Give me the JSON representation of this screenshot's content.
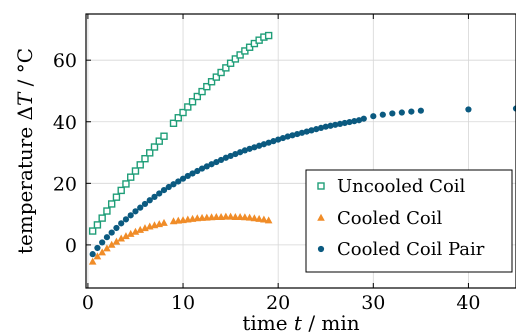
{
  "chart_data": {
    "type": "scatter",
    "xlabel": "time t / min",
    "ylabel": "temperature ΔT / °C",
    "xlim": [
      -0.2,
      45
    ],
    "ylim": [
      -14,
      75
    ],
    "x_ticks": [
      0,
      10,
      20,
      30,
      40
    ],
    "y_ticks": [
      0,
      20,
      40,
      60
    ],
    "grid": true,
    "legend_position": "lower-right",
    "series": [
      {
        "name": "Uncooled Coil",
        "marker": "square-open",
        "color": "#1f9e78",
        "points": [
          [
            0.5,
            4.5
          ],
          [
            1.0,
            6.5
          ],
          [
            1.5,
            8.7
          ],
          [
            2.0,
            11.0
          ],
          [
            2.5,
            13.3
          ],
          [
            3.0,
            15.5
          ],
          [
            3.5,
            17.7
          ],
          [
            4.0,
            19.8
          ],
          [
            4.5,
            22.0
          ],
          [
            5.0,
            24.0
          ],
          [
            5.5,
            26.0
          ],
          [
            6.0,
            28.0
          ],
          [
            6.5,
            29.9
          ],
          [
            7.0,
            31.8
          ],
          [
            7.5,
            33.7
          ],
          [
            8.0,
            35.3
          ],
          [
            9.0,
            39.5
          ],
          [
            9.5,
            41.3
          ],
          [
            10.0,
            43.0
          ],
          [
            10.5,
            44.8
          ],
          [
            11.0,
            46.5
          ],
          [
            11.5,
            48.2
          ],
          [
            12.0,
            49.8
          ],
          [
            12.5,
            51.4
          ],
          [
            13.0,
            53.0
          ],
          [
            13.5,
            54.5
          ],
          [
            14.0,
            56.0
          ],
          [
            14.5,
            57.5
          ],
          [
            15.0,
            59.0
          ],
          [
            15.5,
            60.4
          ],
          [
            16.0,
            61.7
          ],
          [
            16.5,
            63.0
          ],
          [
            17.0,
            64.2
          ],
          [
            17.5,
            65.4
          ],
          [
            18.0,
            66.5
          ],
          [
            18.5,
            67.5
          ],
          [
            19.0,
            68.0
          ]
        ]
      },
      {
        "name": "Cooled Coil",
        "marker": "triangle",
        "color": "#f08c28",
        "points": [
          [
            0.5,
            -5.5
          ],
          [
            1.0,
            -3.8
          ],
          [
            1.5,
            -2.5
          ],
          [
            2.0,
            -1.2
          ],
          [
            2.5,
            0.0
          ],
          [
            3.0,
            1.0
          ],
          [
            3.5,
            2.0
          ],
          [
            4.0,
            2.8
          ],
          [
            4.5,
            3.5
          ],
          [
            5.0,
            4.2
          ],
          [
            5.5,
            4.8
          ],
          [
            6.0,
            5.4
          ],
          [
            6.5,
            5.9
          ],
          [
            7.0,
            6.3
          ],
          [
            7.5,
            6.7
          ],
          [
            8.0,
            7.1
          ],
          [
            9.0,
            7.6
          ],
          [
            9.5,
            7.8
          ],
          [
            10.0,
            8.0
          ],
          [
            10.5,
            8.2
          ],
          [
            11.0,
            8.4
          ],
          [
            11.5,
            8.6
          ],
          [
            12.0,
            8.7
          ],
          [
            12.5,
            8.8
          ],
          [
            13.0,
            8.9
          ],
          [
            13.5,
            9.0
          ],
          [
            14.0,
            9.0
          ],
          [
            14.5,
            9.1
          ],
          [
            15.0,
            9.1
          ],
          [
            15.5,
            9.0
          ],
          [
            16.0,
            9.0
          ],
          [
            16.5,
            8.9
          ],
          [
            17.0,
            8.8
          ],
          [
            17.5,
            8.6
          ],
          [
            18.0,
            8.4
          ],
          [
            18.5,
            8.2
          ],
          [
            19.0,
            7.9
          ]
        ]
      },
      {
        "name": "Cooled Coil Pair",
        "marker": "circle",
        "color": "#0b5a80",
        "points": [
          [
            0.5,
            -3.0
          ],
          [
            1.0,
            -1.0
          ],
          [
            1.5,
            0.8
          ],
          [
            2.0,
            2.5
          ],
          [
            2.5,
            4.0
          ],
          [
            3.0,
            5.5
          ],
          [
            3.5,
            7.0
          ],
          [
            4.0,
            8.3
          ],
          [
            4.5,
            9.6
          ],
          [
            5.0,
            10.9
          ],
          [
            5.5,
            12.1
          ],
          [
            6.0,
            13.3
          ],
          [
            6.5,
            14.5
          ],
          [
            7.0,
            15.6
          ],
          [
            7.5,
            16.7
          ],
          [
            8.0,
            17.8
          ],
          [
            8.5,
            18.8
          ],
          [
            9.0,
            19.7
          ],
          [
            9.5,
            20.6
          ],
          [
            10.0,
            21.5
          ],
          [
            10.5,
            22.4
          ],
          [
            11.0,
            23.2
          ],
          [
            11.5,
            24.0
          ],
          [
            12.0,
            24.8
          ],
          [
            12.5,
            25.5
          ],
          [
            13.0,
            26.2
          ],
          [
            13.5,
            26.9
          ],
          [
            14.0,
            27.6
          ],
          [
            14.5,
            28.3
          ],
          [
            15.0,
            28.9
          ],
          [
            15.5,
            29.5
          ],
          [
            16.0,
            30.1
          ],
          [
            16.5,
            30.7
          ],
          [
            17.0,
            31.2
          ],
          [
            17.5,
            31.7
          ],
          [
            18.0,
            32.2
          ],
          [
            18.5,
            32.7
          ],
          [
            19.0,
            33.2
          ],
          [
            19.5,
            33.7
          ],
          [
            20.0,
            34.2
          ],
          [
            20.5,
            34.7
          ],
          [
            21.0,
            35.2
          ],
          [
            21.5,
            35.6
          ],
          [
            22.0,
            36.0
          ],
          [
            22.5,
            36.4
          ],
          [
            23.0,
            36.8
          ],
          [
            23.5,
            37.2
          ],
          [
            24.0,
            37.6
          ],
          [
            24.5,
            38.0
          ],
          [
            25.0,
            38.4
          ],
          [
            25.5,
            38.7
          ],
          [
            26.0,
            39.0
          ],
          [
            26.5,
            39.3
          ],
          [
            27.0,
            39.6
          ],
          [
            27.5,
            39.9
          ],
          [
            28.0,
            40.2
          ],
          [
            28.5,
            40.5
          ],
          [
            29.0,
            41.0
          ],
          [
            30.0,
            41.8
          ],
          [
            31.0,
            42.3
          ],
          [
            32.0,
            42.7
          ],
          [
            33.0,
            43.0
          ],
          [
            34.0,
            43.3
          ],
          [
            35.0,
            43.6
          ],
          [
            40.0,
            44.0
          ],
          [
            45.0,
            44.3
          ]
        ]
      }
    ]
  }
}
